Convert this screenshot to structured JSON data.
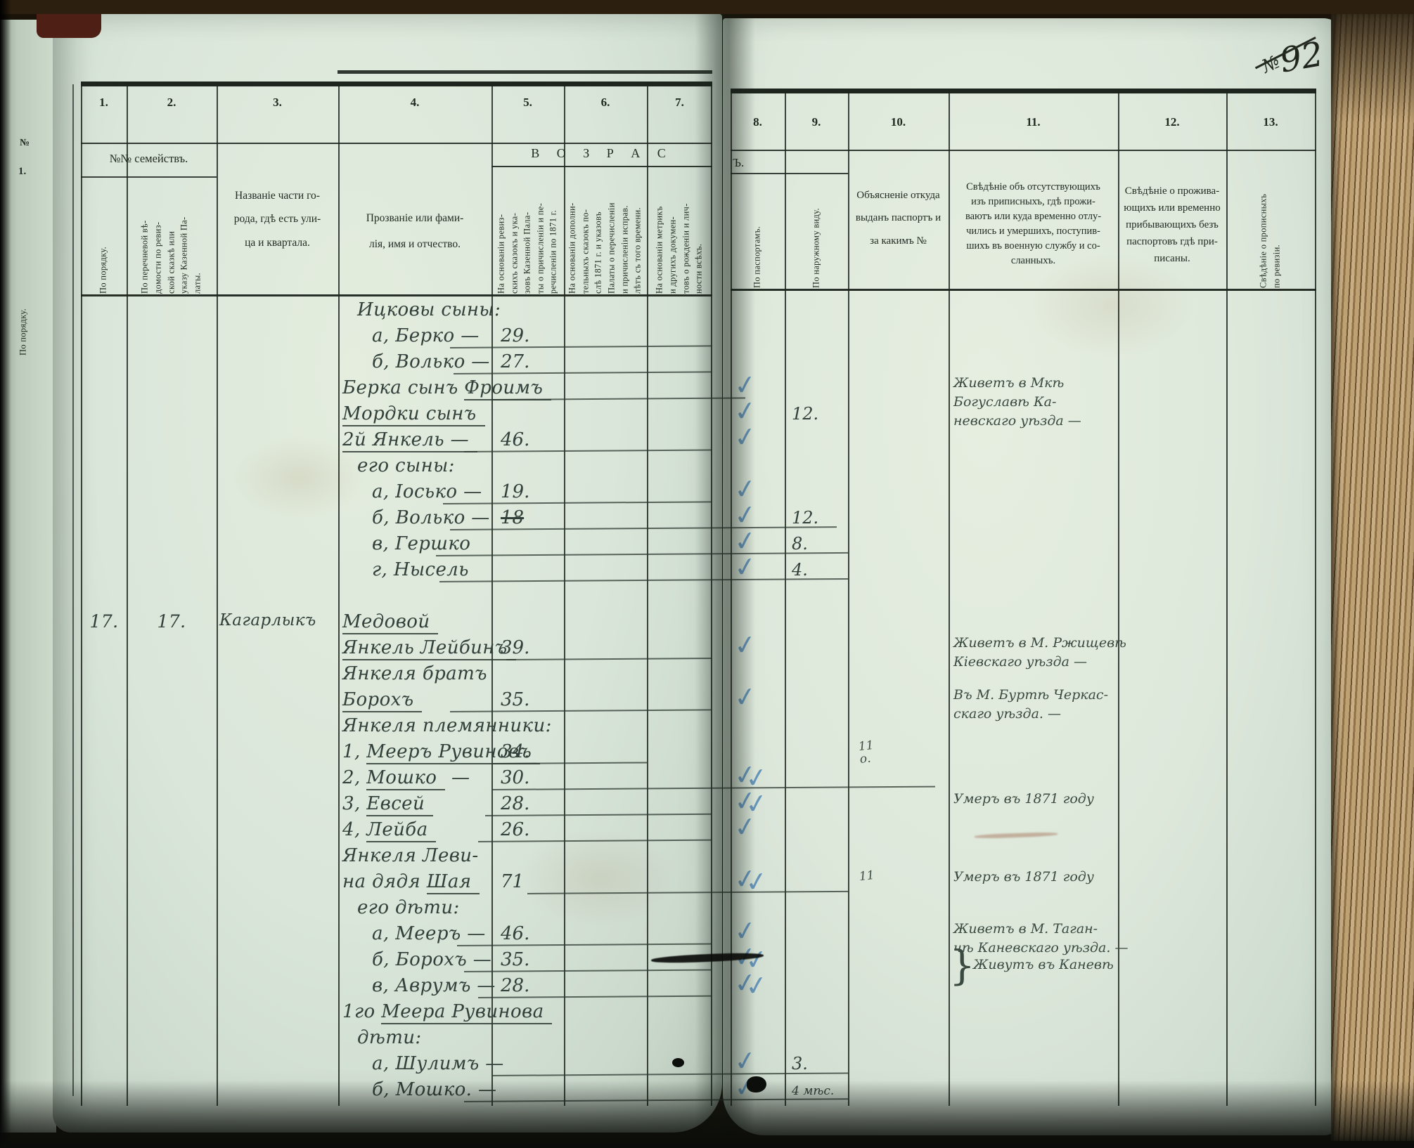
{
  "page_corner": {
    "prefix": "№",
    "number": "92"
  },
  "age_band": {
    "left": "В О З Р А С",
    "right": "Ъ."
  },
  "left_header": {
    "families": "№№ семействъ."
  },
  "strip": {
    "num": "1.",
    "no": "№",
    "vlabel": "По порядку."
  },
  "ink": {
    "handwriting": "#31403a",
    "check_blue": "#477fb2",
    "print": "#20291f"
  },
  "columns": [
    {
      "num": "1.",
      "title": "По порядку."
    },
    {
      "num": "2.",
      "title": "По перечневой вѣ-\nдомости по ревиз-\nской сказкѣ или\nуказу Казенной Па-\nлаты."
    },
    {
      "num": "3.",
      "title": "Названіе части го-\nрода, гдѣ есть ули-\nца и квартала."
    },
    {
      "num": "4.",
      "title": "Прозваніе или фами-\nлія, имя и отчество."
    },
    {
      "num": "5.",
      "title": "На основаніи ревиз-\nскихъ сказокъ и ука-\nзовъ Казенной Пала-\nты о причисленіи и пе-\nречисленіи по 1871 г."
    },
    {
      "num": "6.",
      "title": "На основаніи дополни-\nтельныхъ сказокъ по-\nслѣ 1871 г. и указовъ\nПалаты о перечисленіи\nи причисленіи исправ.\nлѣтъ съ того времени."
    },
    {
      "num": "7.",
      "title": "На основаніи метрикъ\nи другихъ докумен-\nтовъ о рожденіи и лич-\nности всѣхъ."
    },
    {
      "num": "8.",
      "title": "По паспортамъ."
    },
    {
      "num": "9.",
      "title": "По наружному виду."
    },
    {
      "num": "10.",
      "title": "Объясненіе откуда\nвыданъ паспортъ и\nза какимъ №"
    },
    {
      "num": "11.",
      "title": "Свѣдѣніе объ отсутствующихъ\nизъ приписныхъ, гдѣ прожи-\nваютъ или куда временно отлу-\nчились и умершихъ, поступив-\nшихъ въ военную службу и со-\nсланныхъ."
    },
    {
      "num": "12.",
      "title": "Свѣдѣніе о прожива-\nющихъ или временно\nприбывающихъ безъ\nпаспортовъ гдѣ при-\nписаны."
    },
    {
      "num": "13.",
      "title": "Свѣдѣніе о прописныхъ\nпо ревизіи."
    }
  ],
  "rows": [
    {
      "pre": "Ицковы сыны:",
      "ind": 1
    },
    {
      "pre": "а, Берко —",
      "ind": 2,
      "age": "29.",
      "rule": [
        640,
        1013
      ]
    },
    {
      "pre": "б, Волько —",
      "ind": 2,
      "age": "27.",
      "rule": [
        645,
        1013
      ]
    },
    {
      "pre": "Берка сынъ ",
      "ul": "Фроимъ",
      "rule": [
        700,
        1060
      ],
      "check": 1
    },
    {
      "ul": "Мордки сынъ",
      "check": 1,
      "a9": "12."
    },
    {
      "ul": "2й Янкель —",
      "age": "46.",
      "rule": [
        660,
        1013
      ],
      "check": 1
    },
    {
      "pre": "его сыны:",
      "ind": 1
    },
    {
      "pre": "а, Іосько —",
      "ind": 2,
      "age": "19.",
      "rule": [
        630,
        1013
      ],
      "check": 1
    },
    {
      "pre": "б, Волько —",
      "ind": 2,
      "age": "18",
      "strike": true,
      "rule": [
        640,
        1190
      ],
      "check": 1,
      "a9": "12."
    },
    {
      "pre": "в, Гершко",
      "ind": 2,
      "rule": [
        620,
        1206
      ],
      "check": 1,
      "a9": "8."
    },
    {
      "pre": "г, Нысель",
      "ind": 2,
      "rule": [
        625,
        1206
      ],
      "check": 1,
      "a9": "4."
    },
    {},
    {
      "c1": "17.",
      "c2": "17.",
      "c3": "Кагарлыкъ",
      "ul": "Медовой"
    },
    {
      "ul": "Янкель Лейбинъ",
      "age": "39.",
      "rule": [
        720,
        1013
      ],
      "check": 1
    },
    {
      "pre": "Янкеля братъ"
    },
    {
      "ul": "Борохъ",
      "age": "35.",
      "rule": [
        640,
        1013
      ],
      "check": 1
    },
    {
      "pre": "Янкеля племянники:"
    },
    {
      "pre": "1, ",
      "ul": "Мееръ Рувиновъ",
      "age": "34.",
      "rule": [
        700,
        920
      ],
      "m10": "11\nо."
    },
    {
      "pre": "2, ",
      "ul": "Мошко",
      "post": " —",
      "age": "30.",
      "rule": [
        700,
        1330
      ],
      "check": 2
    },
    {
      "pre": "3, ",
      "ul": "Евсей",
      "age": "28.",
      "rule": [
        690,
        1013
      ],
      "check": 2
    },
    {
      "pre": "4, ",
      "ul": "Лейба",
      "age": "26.",
      "rule": [
        680,
        1013
      ],
      "check": 1
    },
    {
      "pre": "Янкеля Леви-"
    },
    {
      "pre": "на дядя ",
      "ul": "Шая",
      "age": "71",
      "rule": [
        750,
        1206
      ],
      "check": 2,
      "m10": "11"
    },
    {
      "pre": "его дѣти:",
      "ind": 1
    },
    {
      "pre": "а, Мееръ —",
      "ind": 2,
      "age": "46.",
      "rule": [
        650,
        1013
      ],
      "check": 1
    },
    {
      "pre": "б, Борохъ —",
      "ind": 2,
      "age": "35.",
      "rule": [
        660,
        1013
      ],
      "check": 2
    },
    {
      "pre": "в, Аврумъ —",
      "ind": 2,
      "age": "28.",
      "rule": [
        680,
        1013
      ],
      "check": 2
    },
    {
      "pre": "1го ",
      "ul": "Меера Рувинова"
    },
    {
      "pre": "дѣти:",
      "ind": 1
    },
    {
      "pre": "а, Шулимъ —",
      "ind": 2,
      "rule": [
        700,
        1206
      ],
      "check": 1,
      "a9": "3."
    },
    {
      "pre": "б, Мошко. —",
      "ind": 2,
      "rule": [
        660,
        1206
      ],
      "check": 1,
      "a9": "4 мѣс."
    }
  ],
  "notes": [
    {
      "row": 3,
      "lines": "Живетъ в Мкѣ\nБогуславѣ Ка-\nневскаго уѣзда —"
    },
    {
      "row": 13,
      "lines": "Живетъ в М. Ржищевѣ\nКіевскаго уѣзда —"
    },
    {
      "row": 15,
      "lines": "Въ М. Буртѣ Черкас-\nскаго уѣзда. —"
    },
    {
      "row": 19,
      "lines": "Умеръ въ 1871 году"
    },
    {
      "row": 22,
      "lines": "Умеръ въ 1871 году"
    },
    {
      "row": 24,
      "lines": "Живетъ в М. Таган-\nчѣ Каневскаго уѣзда. —"
    },
    {
      "row": 25,
      "lines": "Живутъ въ Каневѣ",
      "brace": true
    }
  ]
}
